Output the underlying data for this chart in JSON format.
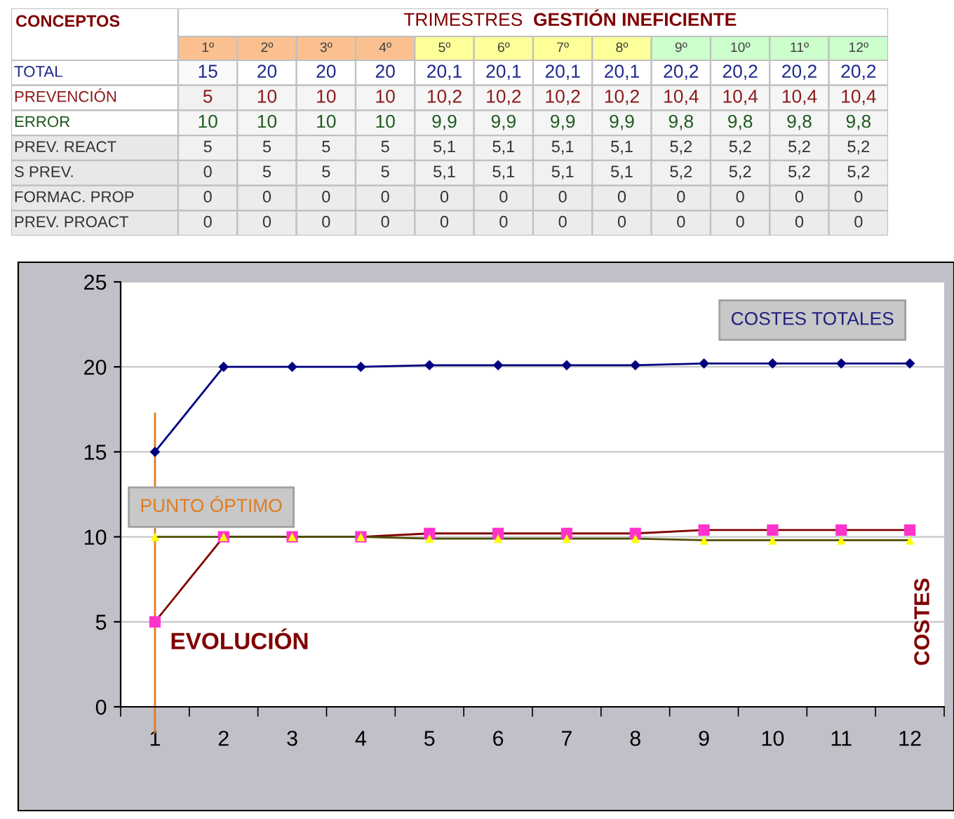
{
  "chart_data": [
    {
      "type": "heatmap",
      "title": "TRIMESTRES",
      "subtitle": "GESTIÓN INEFICIENTE",
      "annotations": [
        "CONCEPTOS"
      ],
      "categories": [
        "1º",
        "2º",
        "3º",
        "4º",
        "5º",
        "6º",
        "7º",
        "8º",
        "9º",
        "10º",
        "11º",
        "12º"
      ],
      "colors": [
        "#fac090",
        "#fac090",
        "#fac090",
        "#fac090",
        "#ffff99",
        "#ffff99",
        "#ffff99",
        "#ffff99",
        "#ccffcc",
        "#ccffcc",
        "#ccffcc",
        "#ccffcc"
      ],
      "y_categories": [
        "TOTAL",
        "PREVENCIÓN",
        "ERROR",
        "PREV. REACT",
        "S PREV.",
        "FORMAC. PROP",
        "PREV. PROACT"
      ],
      "cells": [
        [
          15,
          20,
          20,
          20,
          20.1,
          20.1,
          20.1,
          20.1,
          20.2,
          20.2,
          20.2,
          20.2
        ],
        [
          5,
          10,
          10,
          10,
          10.2,
          10.2,
          10.2,
          10.2,
          10.4,
          10.4,
          10.4,
          10.4
        ],
        [
          10,
          10,
          10,
          10,
          9.9,
          9.9,
          9.9,
          9.9,
          9.8,
          9.8,
          9.8,
          9.8
        ],
        [
          5,
          5,
          5,
          5,
          5.1,
          5.1,
          5.1,
          5.1,
          5.2,
          5.2,
          5.2,
          5.2
        ],
        [
          0,
          5,
          5,
          5,
          5.1,
          5.1,
          5.1,
          5.1,
          5.2,
          5.2,
          5.2,
          5.2
        ],
        [
          0,
          0,
          0,
          0,
          0,
          0,
          0,
          0,
          0,
          0,
          0,
          0
        ],
        [
          0,
          0,
          0,
          0,
          0,
          0,
          0,
          0,
          0,
          0,
          0,
          0
        ]
      ],
      "cell_labels": [
        [
          "15",
          "20",
          "20",
          "20",
          "20,1",
          "20,1",
          "20,1",
          "20,1",
          "20,2",
          "20,2",
          "20,2",
          "20,2"
        ],
        [
          "5",
          "10",
          "10",
          "10",
          "10,2",
          "10,2",
          "10,2",
          "10,2",
          "10,4",
          "10,4",
          "10,4",
          "10,4"
        ],
        [
          "10",
          "10",
          "10",
          "10",
          "9,9",
          "9,9",
          "9,9",
          "9,9",
          "9,8",
          "9,8",
          "9,8",
          "9,8"
        ],
        [
          "5",
          "5",
          "5",
          "5",
          "5,1",
          "5,1",
          "5,1",
          "5,1",
          "5,2",
          "5,2",
          "5,2",
          "5,2"
        ],
        [
          "0",
          "5",
          "5",
          "5",
          "5,1",
          "5,1",
          "5,1",
          "5,1",
          "5,2",
          "5,2",
          "5,2",
          "5,2"
        ],
        [
          "0",
          "0",
          "0",
          "0",
          "0",
          "0",
          "0",
          "0",
          "0",
          "0",
          "0",
          "0"
        ],
        [
          "0",
          "0",
          "0",
          "0",
          "0",
          "0",
          "0",
          "0",
          "0",
          "0",
          "0",
          "0"
        ]
      ]
    },
    {
      "type": "line",
      "categories": [
        "1",
        "2",
        "3",
        "4",
        "5",
        "6",
        "7",
        "8",
        "9",
        "10",
        "11",
        "12"
      ],
      "ylim": [
        0,
        25
      ],
      "yticks": [
        0,
        5,
        10,
        15,
        20,
        25
      ],
      "grid": "y",
      "legend": false,
      "annotations": [
        "COSTES TOTALES",
        "PUNTO ÓPTIMO",
        "EVOLUCIÓN",
        "COSTES"
      ],
      "ref_lines": [
        {
          "axis": "x",
          "value": "1",
          "color": "#e07b20"
        }
      ],
      "series": [
        {
          "color": "#000080",
          "marker": "diamond",
          "values": [
            15,
            20,
            20,
            20,
            20.1,
            20.1,
            20.1,
            20.1,
            20.2,
            20.2,
            20.2,
            20.2
          ]
        },
        {
          "color": "#800000",
          "marker": "square",
          "colors": [
            "#ff33cc",
            "#ff33cc",
            "#ff33cc",
            "#ff33cc",
            "#ff33cc",
            "#ff33cc",
            "#ff33cc",
            "#ff33cc",
            "#ff33cc",
            "#ff33cc",
            "#ff33cc",
            "#ff33cc"
          ],
          "values": [
            5,
            10,
            10,
            10,
            10.2,
            10.2,
            10.2,
            10.2,
            10.4,
            10.4,
            10.4,
            10.4
          ]
        },
        {
          "color": "#4d4d00",
          "marker": "triangle",
          "colors": [
            "#ffff00",
            "#ffff00",
            "#ffff00",
            "#ffff00",
            "#ffff00",
            "#ffff00",
            "#ffff00",
            "#ffff00",
            "#ffff00",
            "#ffff00",
            "#ffff00",
            "#ffff00"
          ],
          "values": [
            10,
            10,
            10,
            10,
            9.9,
            9.9,
            9.9,
            9.9,
            9.8,
            9.8,
            9.8,
            9.8
          ]
        }
      ]
    }
  ]
}
